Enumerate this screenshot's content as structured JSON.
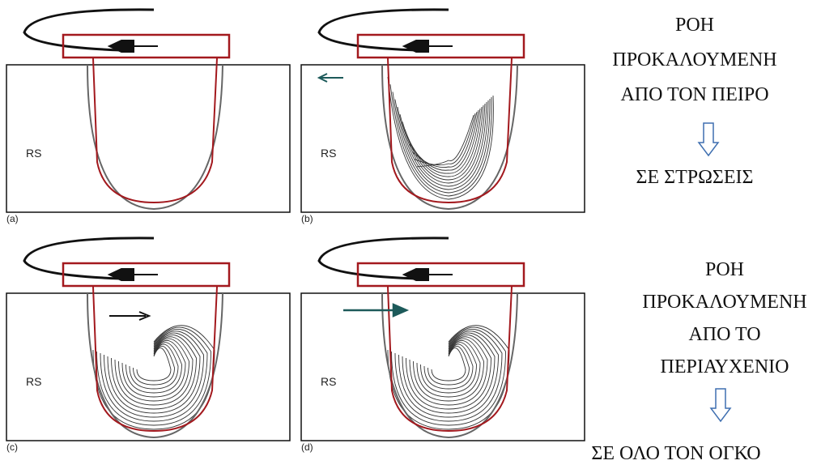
{
  "panels": [
    {
      "label": "(a)",
      "region": "RS"
    },
    {
      "label": "(b)",
      "region": "RS"
    },
    {
      "label": "(c)",
      "region": "RS"
    },
    {
      "label": "(d)",
      "region": "RS"
    }
  ],
  "notes": [
    {
      "lines": [
        "ΡΟΗ",
        "ΠΡΟΚΑΛΟΥΜΕΝΗ",
        "ΑΠΟ ΤΟΝ ΠΕΙΡΟ"
      ],
      "result": "ΣΕ ΣΤΡΩΣΕΙΣ"
    },
    {
      "lines": [
        "ΡΟΗ",
        "ΠΡΟΚΑΛΟΥΜΕΝΗ",
        "ΑΠΟ ΤΟ",
        "ΠΕΡΙΑΥΧΕΝΙΟ"
      ],
      "result": "ΣΕ ΟΛΟ ΤΟΝ ΟΓΚΟ"
    }
  ]
}
